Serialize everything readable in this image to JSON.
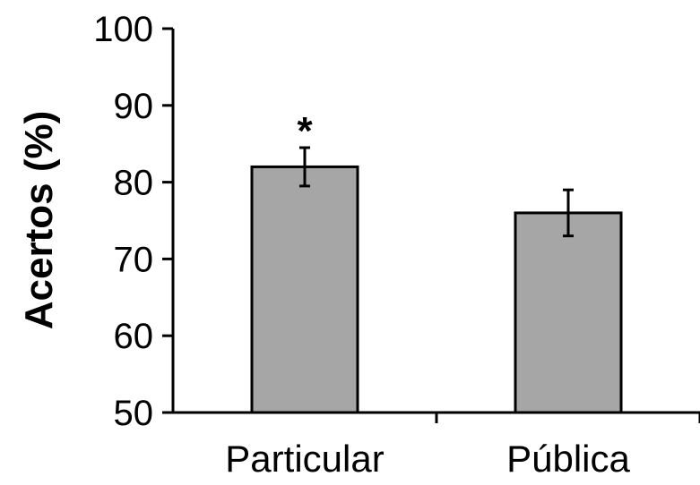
{
  "chart_data": {
    "type": "bar",
    "title": "",
    "xlabel": "",
    "ylabel": "Acertos (%)",
    "categories": [
      "Particular",
      "Pública"
    ],
    "values": [
      82,
      76
    ],
    "error": [
      2.5,
      3
    ],
    "annotations": [
      "*",
      ""
    ],
    "ylim": [
      50,
      100
    ],
    "yticks": [
      50,
      60,
      70,
      80,
      90,
      100
    ],
    "ytick_labels": [
      "50",
      "60",
      "70",
      "80",
      "90",
      "100"
    ],
    "grid": false,
    "legend": "none",
    "colors": {
      "bar_fill": "#a6a6a6",
      "bar_stroke": "#000000",
      "axis": "#000000"
    }
  }
}
